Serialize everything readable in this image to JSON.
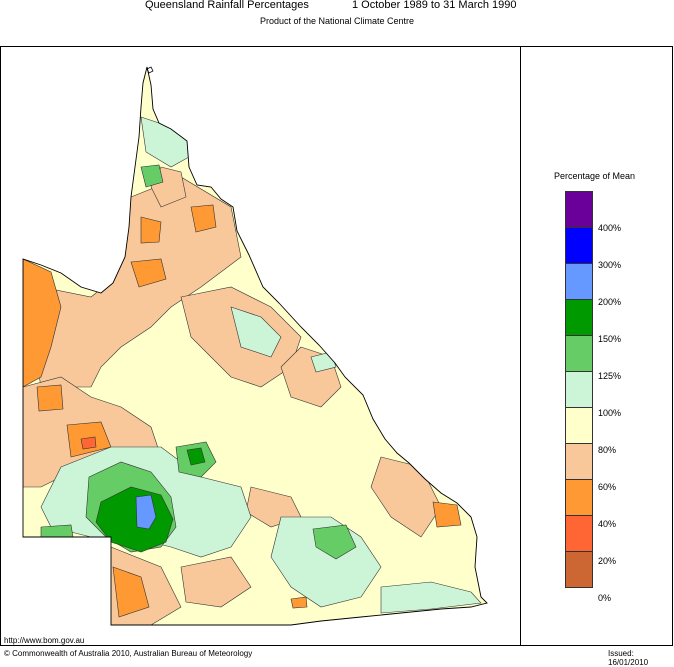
{
  "header": {
    "title": "Queensland Rainfall Percentages",
    "period": "1 October 1989 to 31 March 1990",
    "subtitle": "Product of the National Climate Centre"
  },
  "legend": {
    "title": "Percentage of Mean",
    "bins": [
      {
        "label": "",
        "color": "#6a0099"
      },
      {
        "label": "400%",
        "color": "#0000ff"
      },
      {
        "label": "300%",
        "color": "#6699ff"
      },
      {
        "label": "200%",
        "color": "#009900"
      },
      {
        "label": "150%",
        "color": "#66cc66"
      },
      {
        "label": "125%",
        "color": "#ccf5d8"
      },
      {
        "label": "100%",
        "color": "#ffffcc"
      },
      {
        "label": "80%",
        "color": "#f9c89a"
      },
      {
        "label": "60%",
        "color": "#ff9933"
      },
      {
        "label": "40%",
        "color": "#ff6633"
      },
      {
        "label": "20%",
        "color": "#cc6633"
      },
      {
        "label": "0%",
        "color": ""
      }
    ]
  },
  "footer": {
    "url": "http://www.bom.gov.au",
    "copyright": "© Commonwealth of Australia 2010, Australian Bureau of Meteorology",
    "issued": "Issued: 16/01/2010"
  }
}
